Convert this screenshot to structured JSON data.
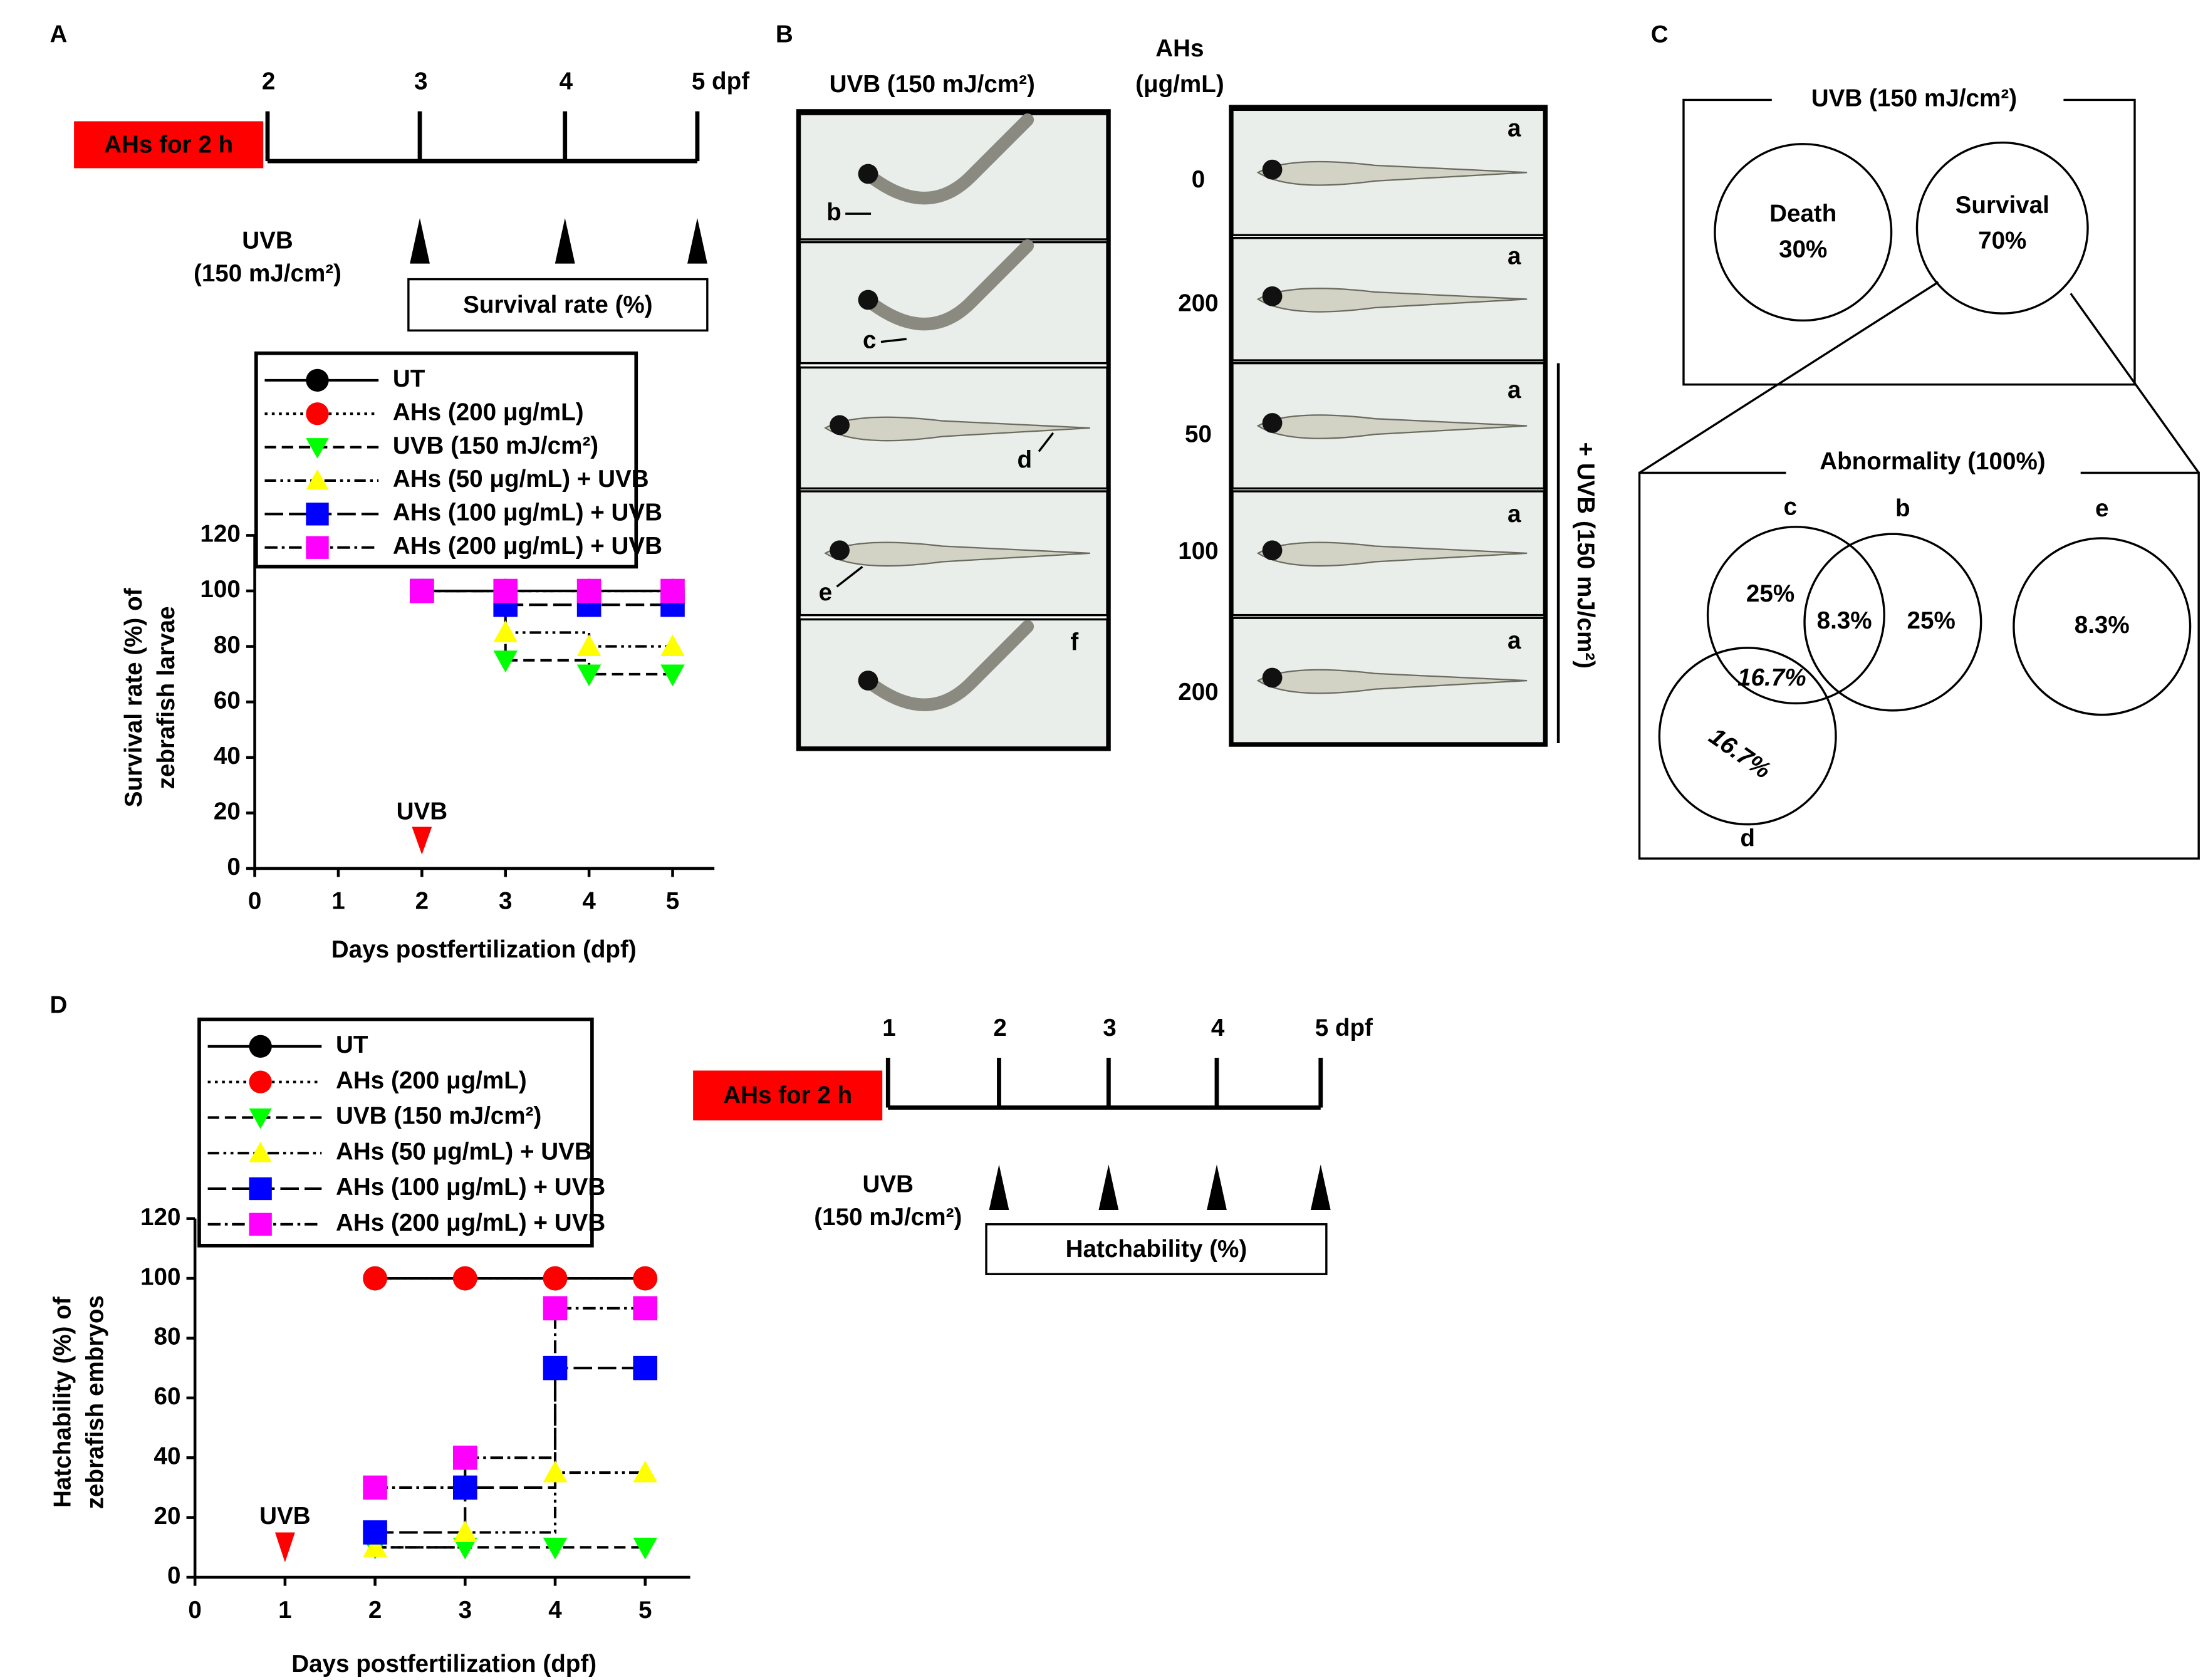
{
  "chart_data": [
    {
      "type": "line",
      "panel": "A",
      "ylabel": [
        "Survival rate (%) of",
        "zebrafish larvae"
      ],
      "xlabel": "Days postfertilization (dpf)",
      "x": [
        2,
        3,
        4,
        5
      ],
      "xlim": [
        0,
        5.5
      ],
      "xticks": [
        0,
        1,
        2,
        3,
        4,
        5
      ],
      "ylim": [
        0,
        120
      ],
      "yticks": [
        0,
        20,
        40,
        60,
        80,
        100,
        120
      ],
      "step": true,
      "annotation": {
        "text": "UVB",
        "x": 2,
        "color": "#ff0000"
      },
      "series": [
        {
          "name": "UT",
          "color": "#000000",
          "marker": "circle",
          "dash": "solid",
          "values": [
            100,
            100,
            100,
            100
          ]
        },
        {
          "name": "AHs (200 μg/mL)",
          "color": "#ff0000",
          "marker": "circle",
          "dash": "dotted",
          "values": [
            100,
            100,
            100,
            100
          ]
        },
        {
          "name": "UVB (150 mJ/cm²)",
          "color": "#00ff00",
          "marker": "triangle-down",
          "dash": "dashed",
          "values": [
            100,
            75,
            70,
            70
          ]
        },
        {
          "name": "AHs (50 μg/mL) + UVB",
          "color": "#ffff00",
          "marker": "triangle-up",
          "dash": "dashdotdot",
          "values": [
            100,
            85,
            80,
            80
          ]
        },
        {
          "name": "AHs (100 μg/mL) + UVB",
          "color": "#0000ff",
          "marker": "square",
          "dash": "longdash",
          "values": [
            100,
            95,
            95,
            95
          ]
        },
        {
          "name": "AHs (200 μg/mL) + UVB",
          "color": "#ff00ff",
          "marker": "square",
          "dash": "dashdot",
          "values": [
            100,
            100,
            100,
            100
          ]
        }
      ]
    },
    {
      "type": "line",
      "panel": "D",
      "ylabel": [
        "Hatchability (%) of",
        "zebrafish embryos"
      ],
      "xlabel": "Days postfertilization (dpf)",
      "x": [
        2,
        3,
        4,
        5
      ],
      "xlim": [
        0,
        5.5
      ],
      "xticks": [
        0,
        1,
        2,
        3,
        4,
        5
      ],
      "ylim": [
        0,
        120
      ],
      "yticks": [
        0,
        20,
        40,
        60,
        80,
        100,
        120
      ],
      "step": true,
      "annotation": {
        "text": "UVB",
        "x": 1,
        "color": "#ff0000"
      },
      "series": [
        {
          "name": "UT",
          "color": "#000000",
          "marker": "circle",
          "dash": "solid",
          "values": [
            100,
            100,
            100,
            100
          ]
        },
        {
          "name": "AHs (200 μg/mL)",
          "color": "#ff0000",
          "marker": "circle",
          "dash": "dotted",
          "values": [
            100,
            100,
            100,
            100
          ]
        },
        {
          "name": "UVB (150 mJ/cm²)",
          "color": "#00ff00",
          "marker": "triangle-down",
          "dash": "dashed",
          "values": [
            10,
            10,
            10,
            10
          ]
        },
        {
          "name": "AHs (50 μg/mL) + UVB",
          "color": "#ffff00",
          "marker": "triangle-up",
          "dash": "dashdotdot",
          "values": [
            10,
            15,
            35,
            35
          ]
        },
        {
          "name": "AHs (100 μg/mL) + UVB",
          "color": "#0000ff",
          "marker": "square",
          "dash": "longdash",
          "values": [
            15,
            30,
            70,
            70
          ]
        },
        {
          "name": "AHs (200 μg/mL) + UVB",
          "color": "#ff00ff",
          "marker": "square",
          "dash": "dashdot",
          "values": [
            30,
            40,
            90,
            90
          ]
        }
      ]
    }
  ],
  "timelines": [
    {
      "treatment": "AHs for 2 h",
      "ticks": [
        "2",
        "3",
        "4",
        "5 dpf"
      ],
      "exposure": "UVB",
      "dose": "(150 mJ/cm²)",
      "readout": "Survival rate (%)"
    },
    {
      "treatment": "AHs for 2 h",
      "ticks": [
        "1",
        "2",
        "3",
        "4",
        "5 dpf"
      ],
      "exposure": "UVB",
      "dose": "(150 mJ/cm²)",
      "readout": "Hatchability (%)"
    }
  ],
  "panel_b": {
    "panel": "B",
    "left_header": "UVB (150 mJ/cm²)",
    "right_header": [
      "AHs",
      "(μg/mL)"
    ],
    "left_labels": [
      "b",
      "c",
      "d",
      "e",
      "f"
    ],
    "doses": [
      "0",
      "200",
      "50",
      "100",
      "200"
    ],
    "right_labels": [
      "a",
      "a",
      "a",
      "a",
      "a"
    ],
    "side_label": "+ UVB (150 mJ/cm²)"
  },
  "panel_c": {
    "panel": "C",
    "top_title": "UVB (150 mJ/cm²)",
    "death": [
      "Death",
      "30%"
    ],
    "survival": [
      "Survival",
      "70%"
    ],
    "bottom_title": "Abnormality (100%)",
    "set_labels": [
      "c",
      "b",
      "e",
      "d"
    ],
    "regions": [
      "25%",
      "8.3%",
      "25%",
      "16.7%",
      "16.7%",
      "8.3%"
    ]
  }
}
